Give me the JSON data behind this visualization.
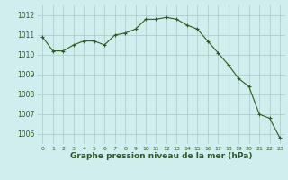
{
  "x": [
    0,
    1,
    2,
    3,
    4,
    5,
    6,
    7,
    8,
    9,
    10,
    11,
    12,
    13,
    14,
    15,
    16,
    17,
    18,
    19,
    20,
    21,
    22,
    23
  ],
  "y": [
    1010.9,
    1010.2,
    1010.2,
    1010.5,
    1010.7,
    1010.7,
    1010.5,
    1011.0,
    1011.1,
    1011.3,
    1011.8,
    1011.8,
    1011.9,
    1011.8,
    1011.5,
    1011.3,
    1010.7,
    1010.1,
    1009.5,
    1008.8,
    1008.4,
    1007.0,
    1006.8,
    1005.8
  ],
  "line_color": "#2d5a1b",
  "marker": "+",
  "marker_size": 3,
  "bg_color": "#d0eeee",
  "grid_color": "#b0cccc",
  "xlabel": "Graphe pression niveau de la mer (hPa)",
  "xlabel_color": "#2d5a1b",
  "ylabel_ticks": [
    1006,
    1007,
    1008,
    1009,
    1010,
    1011,
    1012
  ],
  "xtick_labels": [
    "0",
    "1",
    "2",
    "3",
    "4",
    "5",
    "6",
    "7",
    "8",
    "9",
    "10",
    "11",
    "12",
    "13",
    "14",
    "15",
    "16",
    "17",
    "18",
    "19",
    "20",
    "21",
    "22",
    "23"
  ],
  "ylim": [
    1005.5,
    1012.5
  ],
  "xlim": [
    -0.5,
    23.5
  ],
  "ytick_fontsize": 5.5,
  "xtick_fontsize": 4.5,
  "xlabel_fontsize": 6.5
}
